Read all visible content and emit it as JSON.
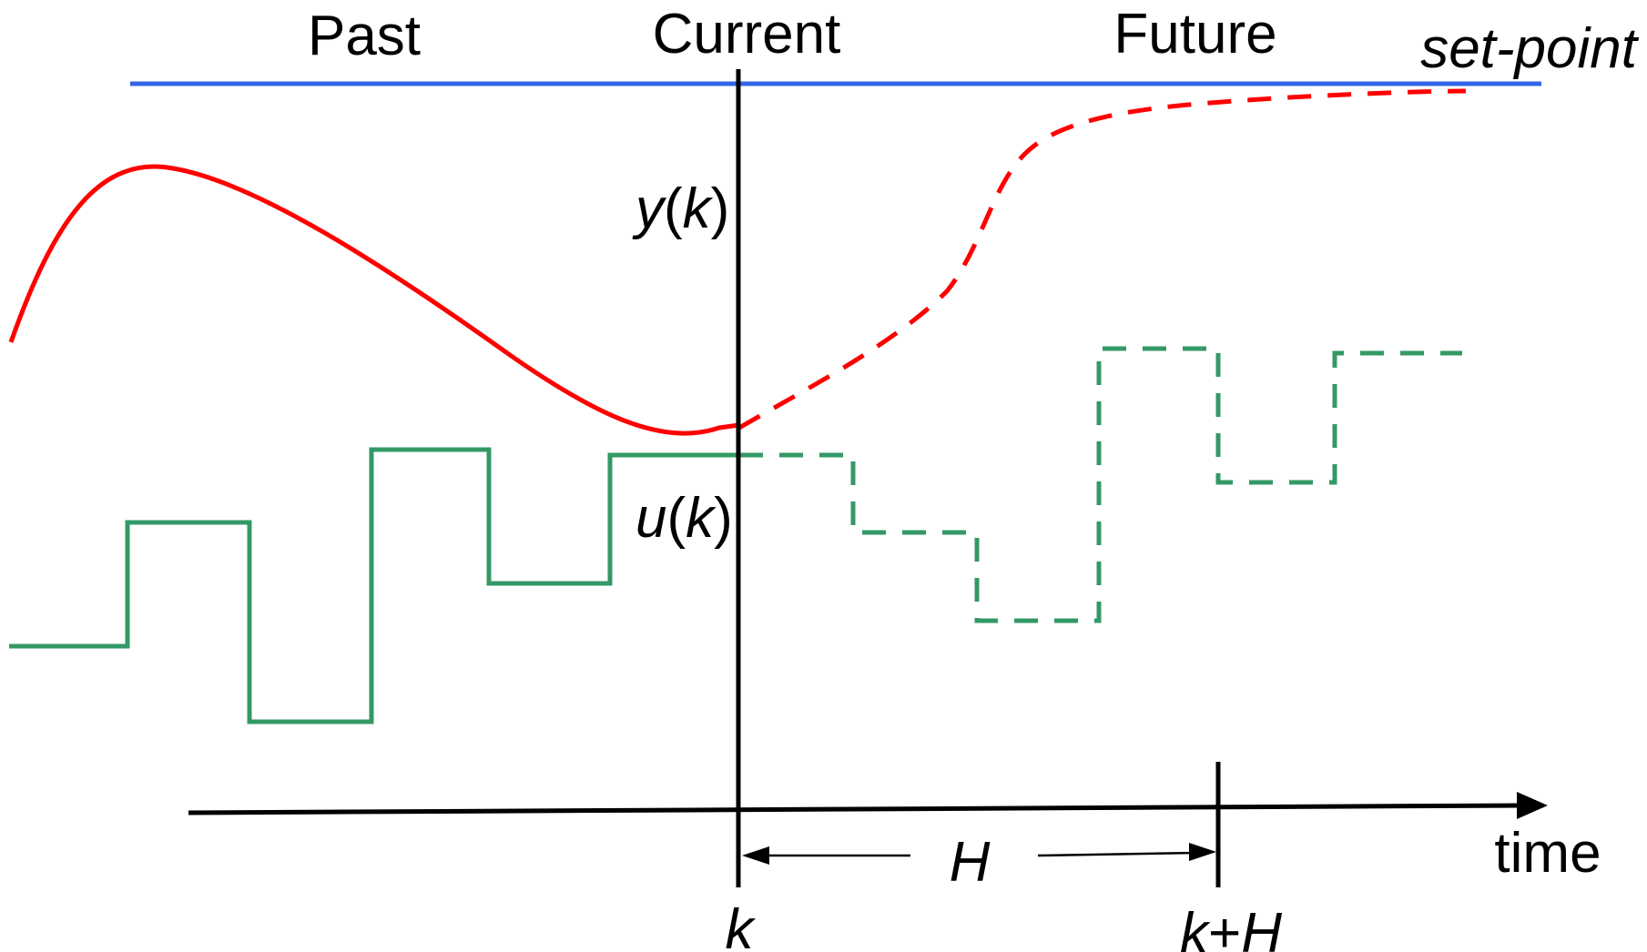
{
  "labels": {
    "past": "Past",
    "current": "Current",
    "future": "Future",
    "setpoint": "set-point",
    "output_prefix": "y",
    "output_arg": "(",
    "output_var": "k",
    "output_close": ")",
    "input_prefix": "u",
    "input_arg": "(",
    "input_var": "k",
    "input_close": ")",
    "horizon": "H",
    "time": "time",
    "k": "k",
    "k_plus": "k",
    "plus": "+",
    "H_label": "H"
  },
  "colors": {
    "setpoint": "#3366e6",
    "output": "#ff0000",
    "input": "#339966",
    "axis": "#000000"
  }
}
